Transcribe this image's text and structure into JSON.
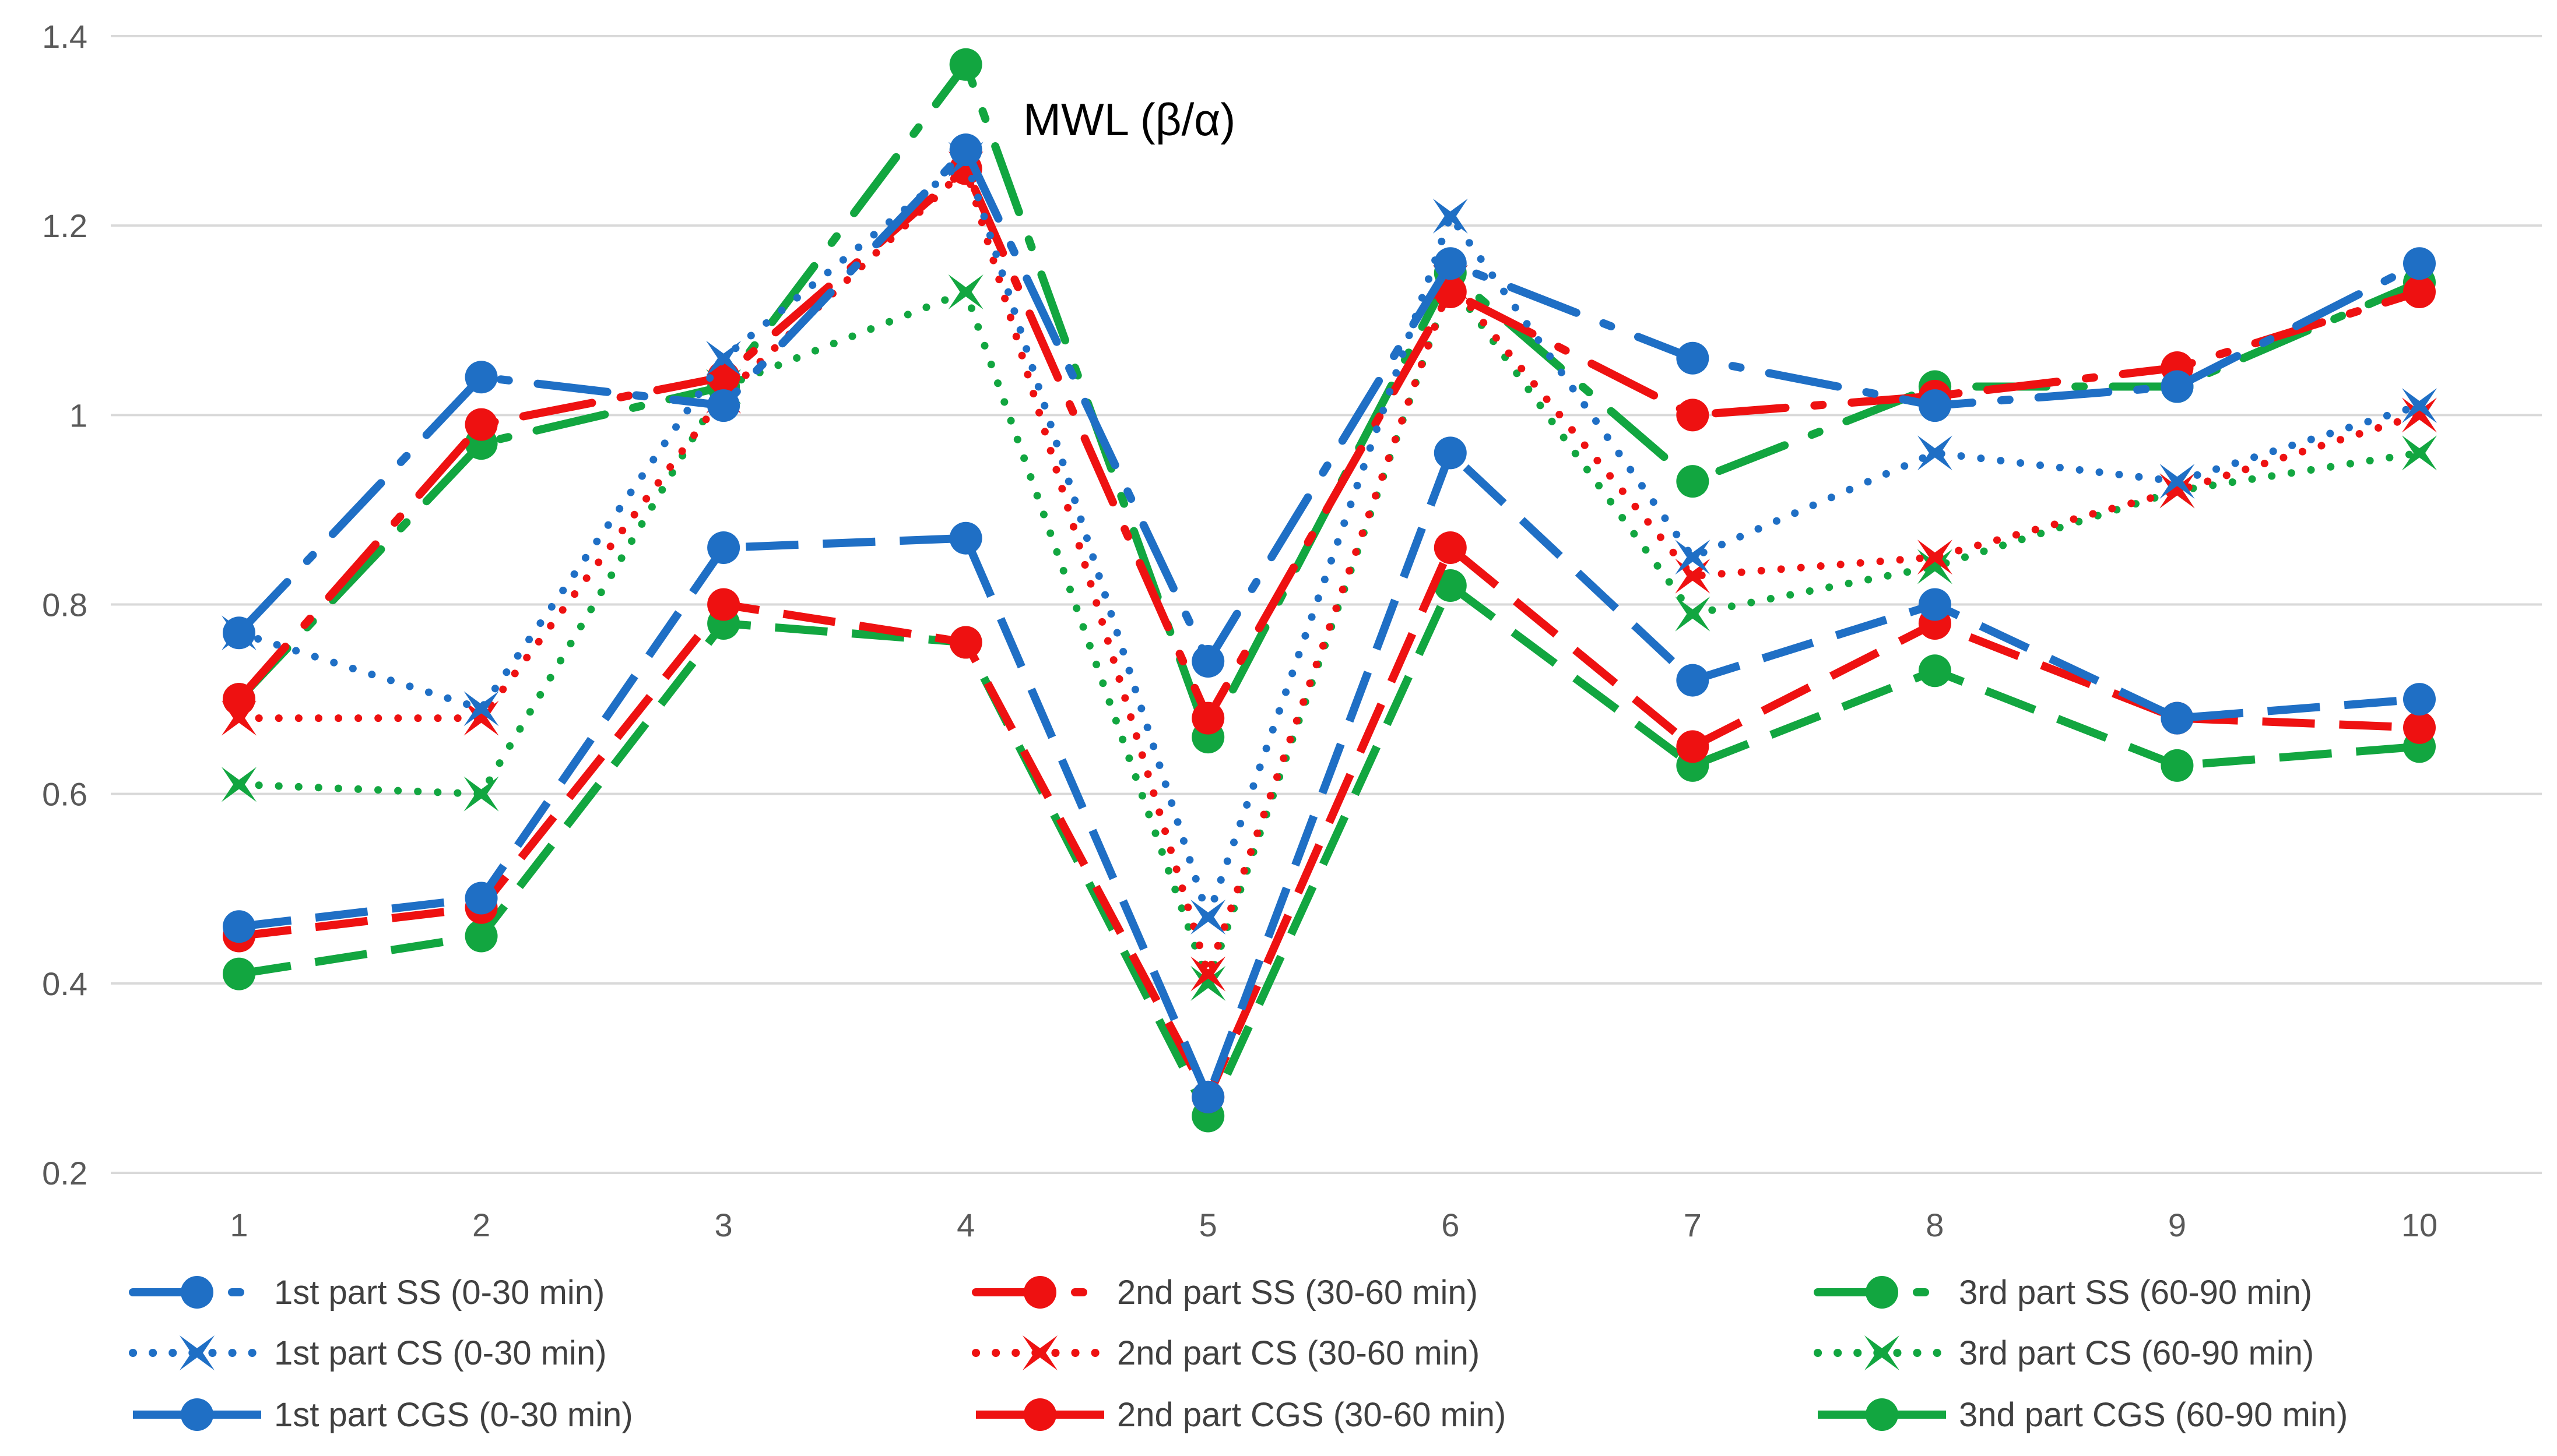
{
  "chart_data": {
    "type": "line",
    "title": "MWL (β/α)",
    "xlabel": "",
    "ylabel": "",
    "ylim": [
      0.2,
      1.4
    ],
    "yticks": [
      "0.2",
      "0.4",
      "0.6",
      "0.8",
      "1",
      "1.2",
      "1.4"
    ],
    "categories": [
      "1",
      "2",
      "3",
      "4",
      "5",
      "6",
      "7",
      "8",
      "9",
      "10"
    ],
    "grid": true,
    "legend_position": "bottom",
    "series": [
      {
        "name": "1st part SS (0-30 min)",
        "color": "#1F6FC5",
        "dash": "longdashdot",
        "marker": "circle",
        "values": [
          0.77,
          1.04,
          1.01,
          1.28,
          0.74,
          1.16,
          1.06,
          1.01,
          1.03,
          1.16
        ]
      },
      {
        "name": "1st part CS (0-30 min)",
        "color": "#1F6FC5",
        "dash": "dot",
        "marker": "arrow",
        "values": [
          0.77,
          0.69,
          1.06,
          1.27,
          0.47,
          1.21,
          0.85,
          0.96,
          0.93,
          1.01
        ]
      },
      {
        "name": "1st part CGS (0-30 min)",
        "color": "#1F6FC5",
        "dash": "dash",
        "marker": "circle",
        "values": [
          0.46,
          0.49,
          0.86,
          0.87,
          0.28,
          0.96,
          0.72,
          0.8,
          0.68,
          0.7
        ]
      },
      {
        "name": "2nd part SS (30-60 min)",
        "color": "#EE1111",
        "dash": "longdashdot",
        "marker": "circle",
        "values": [
          0.7,
          0.99,
          1.04,
          1.26,
          0.68,
          1.13,
          1.0,
          1.02,
          1.05,
          1.13
        ]
      },
      {
        "name": "2nd part CS (30-60 min)",
        "color": "#EE1111",
        "dash": "dot",
        "marker": "arrow",
        "values": [
          0.68,
          0.68,
          1.02,
          1.26,
          0.41,
          1.14,
          0.83,
          0.85,
          0.92,
          1.0
        ]
      },
      {
        "name": "2nd part CGS (30-60 min)",
        "color": "#EE1111",
        "dash": "dash",
        "marker": "circle",
        "values": [
          0.45,
          0.48,
          0.8,
          0.76,
          0.28,
          0.86,
          0.65,
          0.78,
          0.68,
          0.67
        ]
      },
      {
        "name": "3rd part SS (60-90 min)",
        "color": "#12A640",
        "dash": "longdashdot",
        "marker": "circle",
        "values": [
          0.7,
          0.97,
          1.03,
          1.37,
          0.66,
          1.15,
          0.93,
          1.03,
          1.03,
          1.14
        ]
      },
      {
        "name": "3rd part CS (60-90 min)",
        "color": "#12A640",
        "dash": "dot",
        "marker": "arrow",
        "values": [
          0.61,
          0.6,
          1.03,
          1.13,
          0.4,
          1.14,
          0.79,
          0.84,
          0.92,
          0.96
        ]
      },
      {
        "name": "3nd part CGS (60-90 min)",
        "color": "#12A640",
        "dash": "dash",
        "marker": "circle",
        "values": [
          0.41,
          0.45,
          0.78,
          0.76,
          0.26,
          0.82,
          0.63,
          0.73,
          0.63,
          0.65
        ]
      }
    ]
  }
}
